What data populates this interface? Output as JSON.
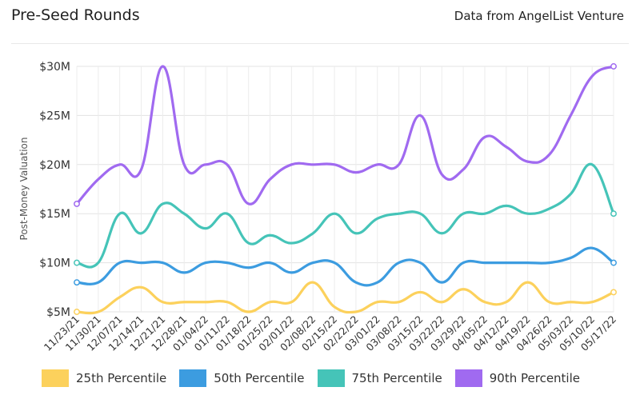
{
  "header": {
    "title": "Pre-Seed Rounds",
    "source": "Data from AngelList Venture"
  },
  "chart_data": {
    "type": "line",
    "ylabel": "Post-Money Valuation",
    "ylim": [
      5,
      30
    ],
    "yticks": [
      5,
      10,
      15,
      20,
      25,
      30
    ],
    "ytick_labels": [
      "$5M",
      "$10M",
      "$15M",
      "$20M",
      "$25M",
      "$30M"
    ],
    "grid": true,
    "legend_position": "bottom",
    "categories": [
      "11/23/21",
      "11/30/21",
      "12/07/21",
      "12/14/21",
      "12/21/21",
      "12/28/21",
      "01/04/22",
      "01/11/22",
      "01/18/22",
      "01/25/22",
      "02/01/22",
      "02/08/22",
      "02/15/22",
      "02/22/22",
      "03/01/22",
      "03/08/22",
      "03/15/22",
      "03/22/22",
      "03/29/22",
      "04/05/22",
      "04/12/22",
      "04/19/22",
      "04/26/22",
      "05/03/22",
      "05/10/22",
      "05/17/22"
    ],
    "series": [
      {
        "name": "25th Percentile",
        "color": "#fcd15c",
        "values": [
          5,
          5,
          6.5,
          7.5,
          6,
          6,
          6,
          6,
          5,
          6,
          6,
          8,
          5.5,
          5,
          6,
          6,
          7,
          6,
          7.3,
          6,
          6,
          8,
          6,
          6,
          6,
          7
        ]
      },
      {
        "name": "50th Percentile",
        "color": "#3c9ce0",
        "values": [
          8,
          8,
          10,
          10,
          10,
          9,
          10,
          10,
          9.5,
          10,
          9,
          10,
          10,
          8,
          8,
          10,
          10,
          8,
          10,
          10,
          10,
          10,
          10,
          10.5,
          11.5,
          10
        ]
      },
      {
        "name": "75th Percentile",
        "color": "#45c4b8",
        "values": [
          10,
          10,
          15,
          13,
          16,
          15,
          13.5,
          15,
          12,
          12.8,
          12,
          13,
          15,
          13,
          14.5,
          15,
          15,
          13,
          15,
          15,
          15.8,
          15,
          15.5,
          17,
          20,
          15
        ]
      },
      {
        "name": "90th Percentile",
        "color": "#a06af0",
        "values": [
          16,
          18.5,
          20,
          19.5,
          30,
          20,
          20,
          20,
          16,
          18.5,
          20,
          20,
          20,
          19.2,
          20,
          20,
          25,
          19,
          19.5,
          22.8,
          21.8,
          20.3,
          21,
          25,
          29,
          30
        ]
      }
    ]
  }
}
